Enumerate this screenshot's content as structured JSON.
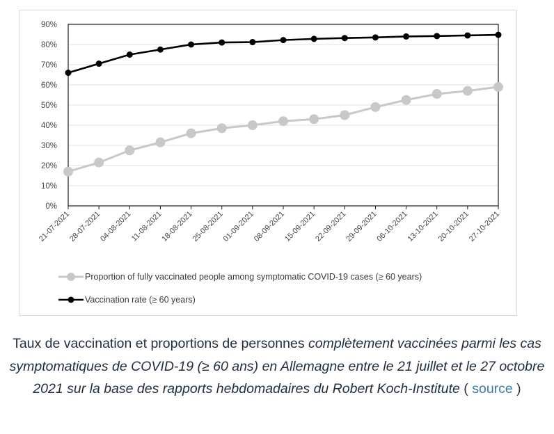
{
  "chart_data": {
    "type": "line",
    "title": "",
    "xlabel": "",
    "ylabel": "",
    "ylim": [
      0,
      90
    ],
    "yticks": [
      "0%",
      "10%",
      "20%",
      "30%",
      "40%",
      "50%",
      "60%",
      "70%",
      "80%",
      "90%"
    ],
    "categories": [
      "21-07-2021",
      "28-07-2021",
      "04-08-2021",
      "11-08-2021",
      "18-08-2021",
      "25-08-2021",
      "01-09-2021",
      "08-09-2021",
      "15-09-2021",
      "22-09-2021",
      "29-09-2021",
      "06-10-2021",
      "13-10-2021",
      "20-10-2021",
      "27-10-2021"
    ],
    "series": [
      {
        "name": "Proportion of fully vaccinated people among symptomatic COVID-19 cases (≥ 60 years)",
        "color": "#c8c8c8",
        "values": [
          17,
          21.5,
          27.5,
          31.5,
          36,
          38.5,
          40,
          42,
          43,
          45,
          49,
          52.5,
          55.5,
          57,
          59
        ]
      },
      {
        "name": "Vaccination rate (≥ 60 years)",
        "color": "#000000",
        "values": [
          66,
          70.5,
          75,
          77.5,
          80,
          81,
          81.2,
          82.2,
          82.8,
          83.2,
          83.5,
          84,
          84.2,
          84.5,
          84.8
        ]
      }
    ],
    "grid": true,
    "legend_position": "bottom"
  },
  "caption": {
    "part1": "Taux de vaccination et proportions de personnes ",
    "part2_italic": "complètement vaccinées parmi les cas symptomatiques de COVID-19 (≥ 60 ans) en Allemagne entre le 21 juillet et le 27 octobre 2021 sur la base des rapports hebdomadaires du Robert Koch-Institute",
    "part3": " ( ",
    "link": "source",
    "part4": " )"
  }
}
